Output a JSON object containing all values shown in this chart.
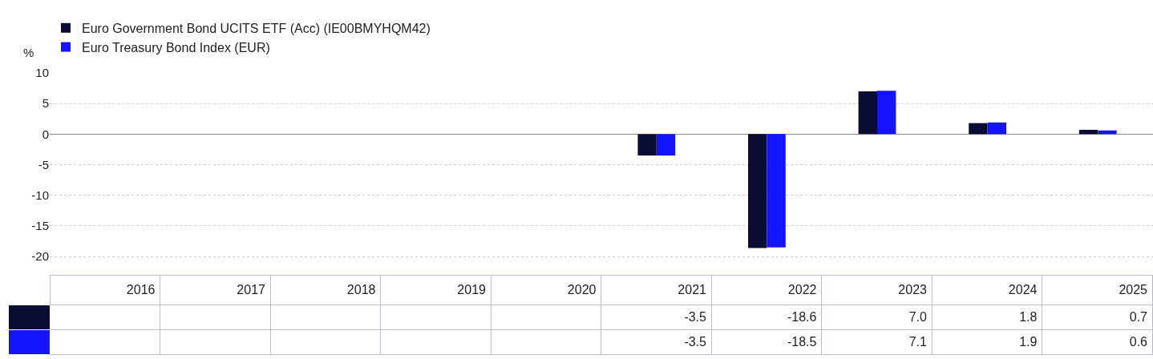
{
  "chart_data": {
    "type": "bar",
    "ylabel": "%",
    "categories": [
      "2016",
      "2017",
      "2018",
      "2019",
      "2020",
      "2021",
      "2022",
      "2023",
      "2024",
      "2025"
    ],
    "series": [
      {
        "name": "Euro Government Bond UCITS ETF (Acc) (IE00BMYHQM42)",
        "color": "#0b0c33",
        "values": [
          null,
          null,
          null,
          null,
          null,
          -3.5,
          -18.6,
          7.0,
          1.8,
          0.7
        ],
        "value_labels": [
          null,
          null,
          null,
          null,
          null,
          "-3.5",
          "-18.6",
          "7.0",
          "1.8",
          "0.7"
        ]
      },
      {
        "name": "Euro Treasury Bond Index (EUR)",
        "color": "#1414ff",
        "values": [
          null,
          null,
          null,
          null,
          null,
          -3.5,
          -18.5,
          7.1,
          1.9,
          0.6
        ],
        "value_labels": [
          null,
          null,
          null,
          null,
          null,
          "-3.5",
          "-18.5",
          "7.1",
          "1.9",
          "0.6"
        ]
      }
    ],
    "ylim": [
      -23,
      10
    ],
    "yticks": [
      -20,
      -15,
      -10,
      -5,
      0,
      5,
      10
    ],
    "grid": "y",
    "legend": "top left",
    "tick_labels": "y"
  }
}
